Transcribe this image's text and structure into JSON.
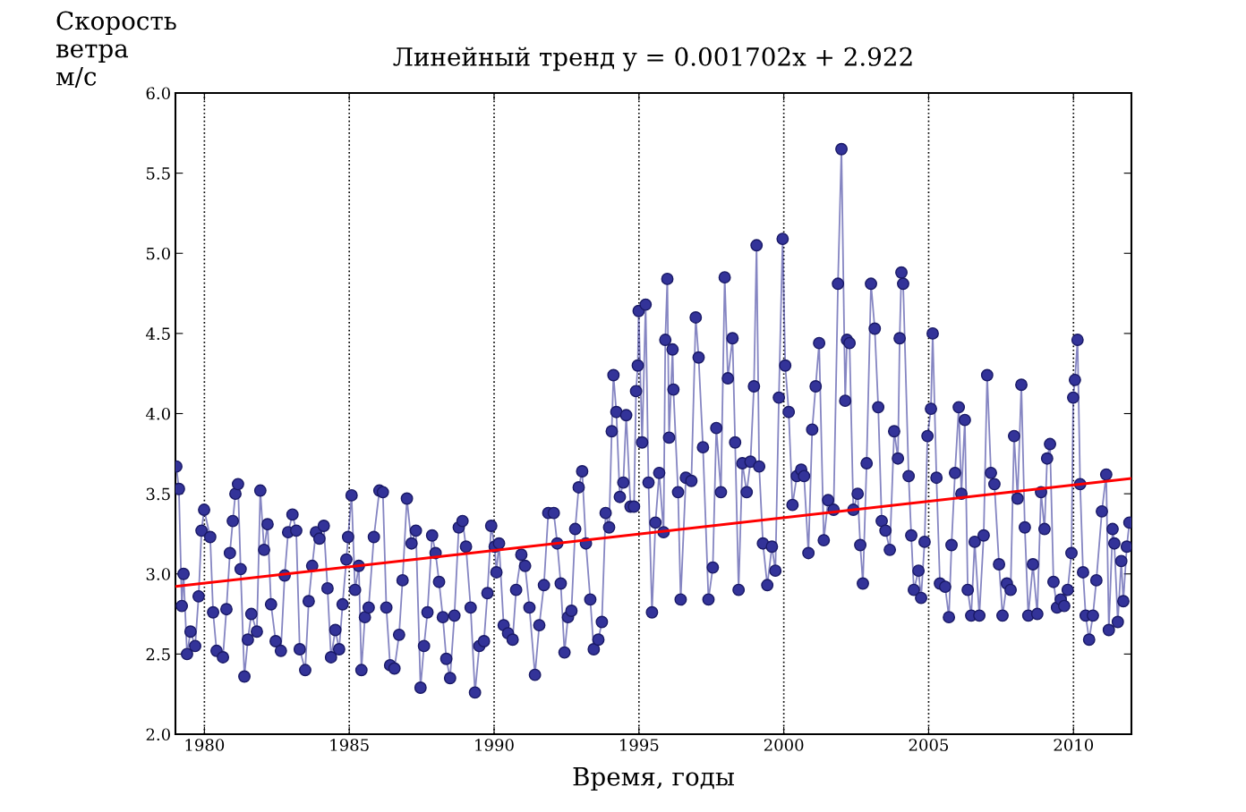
{
  "chart_data": {
    "type": "line",
    "title": "Линейный тренд y = 0.001702x + 2.922",
    "xlabel": "Время, годы",
    "ylabel": "Скорость\nветра\nм/с",
    "xlim": [
      1979,
      2012
    ],
    "xticks": [
      1980,
      1985,
      1990,
      1995,
      2000,
      2005,
      2010
    ],
    "ylim": [
      2.0,
      6.0
    ],
    "yticks": [
      {
        "value": 2.0,
        "label": "2.0"
      },
      {
        "value": 2.5,
        "label": "2.5"
      },
      {
        "value": 3.0,
        "label": "3.0"
      },
      {
        "value": 3.5,
        "label": "3.5"
      },
      {
        "value": 4.0,
        "label": "4.0"
      },
      {
        "value": 4.5,
        "label": "4.5"
      },
      {
        "value": 5.0,
        "label": "5.0"
      },
      {
        "value": 5.5,
        "label": "5.5"
      },
      {
        "value": 6.0,
        "label": "6.0"
      }
    ],
    "grid": "x",
    "legend": false,
    "marker": "circle",
    "line_style": "solid",
    "series": [
      {
        "color": "#333399",
        "x": [
          1979.03,
          1979.12,
          1979.22,
          1979.28,
          1979.4,
          1979.52,
          1979.68,
          1979.8,
          1979.9,
          1979.99,
          1980.2,
          1980.3,
          1980.42,
          1980.64,
          1980.76,
          1980.88,
          1980.98,
          1981.07,
          1981.16,
          1981.25,
          1981.38,
          1981.5,
          1981.62,
          1981.81,
          1981.93,
          1982.06,
          1982.18,
          1982.3,
          1982.46,
          1982.64,
          1982.77,
          1982.89,
          1983.04,
          1983.17,
          1983.29,
          1983.48,
          1983.6,
          1983.72,
          1983.85,
          1983.97,
          1984.12,
          1984.25,
          1984.37,
          1984.52,
          1984.65,
          1984.77,
          1984.9,
          1984.96,
          1985.08,
          1985.2,
          1985.33,
          1985.42,
          1985.54,
          1985.67,
          1985.85,
          1986.04,
          1986.16,
          1986.28,
          1986.41,
          1986.56,
          1986.72,
          1986.84,
          1986.99,
          1987.15,
          1987.3,
          1987.46,
          1987.58,
          1987.7,
          1987.86,
          1987.98,
          1988.1,
          1988.23,
          1988.35,
          1988.48,
          1988.63,
          1988.78,
          1988.91,
          1989.03,
          1989.19,
          1989.34,
          1989.49,
          1989.65,
          1989.77,
          1989.9,
          1990.02,
          1990.08,
          1990.17,
          1990.33,
          1990.48,
          1990.64,
          1990.76,
          1990.94,
          1991.07,
          1991.22,
          1991.41,
          1991.56,
          1991.72,
          1991.87,
          1992.06,
          1992.18,
          1992.3,
          1992.43,
          1992.55,
          1992.67,
          1992.8,
          1992.92,
          1993.04,
          1993.17,
          1993.32,
          1993.44,
          1993.6,
          1993.72,
          1993.85,
          1993.97,
          1994.06,
          1994.12,
          1994.22,
          1994.34,
          1994.46,
          1994.56,
          1994.71,
          1994.83,
          1994.9,
          1994.96,
          1994.99,
          1995.11,
          1995.23,
          1995.33,
          1995.45,
          1995.57,
          1995.7,
          1995.85,
          1995.91,
          1995.98,
          1996.04,
          1996.16,
          1996.19,
          1996.35,
          1996.44,
          1996.62,
          1996.81,
          1996.96,
          1997.06,
          1997.21,
          1997.4,
          1997.55,
          1997.67,
          1997.83,
          1997.96,
          1998.07,
          1998.23,
          1998.32,
          1998.44,
          1998.57,
          1998.72,
          1998.85,
          1998.97,
          1999.06,
          1999.15,
          1999.28,
          1999.43,
          1999.59,
          1999.71,
          1999.83,
          1999.96,
          2000.05,
          2000.17,
          2000.3,
          2000.45,
          2000.6,
          2000.7,
          2000.85,
          2000.98,
          2001.1,
          2001.22,
          2001.38,
          2001.53,
          2001.72,
          2001.87,
          2001.99,
          2002.12,
          2002.18,
          2002.27,
          2002.4,
          2002.55,
          2002.64,
          2002.73,
          2002.86,
          2003.01,
          2003.14,
          2003.26,
          2003.38,
          2003.51,
          2003.66,
          2003.81,
          2003.94,
          2004.0,
          2004.06,
          2004.12,
          2004.31,
          2004.4,
          2004.49,
          2004.65,
          2004.74,
          2004.86,
          2004.96,
          2005.08,
          2005.14,
          2005.27,
          2005.39,
          2005.57,
          2005.7,
          2005.79,
          2005.91,
          2006.04,
          2006.13,
          2006.25,
          2006.35,
          2006.47,
          2006.59,
          2006.75,
          2006.9,
          2007.02,
          2007.15,
          2007.27,
          2007.43,
          2007.55,
          2007.7,
          2007.83,
          2007.95,
          2008.07,
          2008.2,
          2008.32,
          2008.44,
          2008.6,
          2008.75,
          2008.88,
          2009.0,
          2009.09,
          2009.19,
          2009.31,
          2009.43,
          2009.56,
          2009.68,
          2009.8,
          2009.93,
          2009.99,
          2010.05,
          2010.14,
          2010.23,
          2010.33,
          2010.42,
          2010.54,
          2010.67,
          2010.79,
          2010.98,
          2011.13,
          2011.22,
          2011.35,
          2011.41,
          2011.53,
          2011.65,
          2011.72,
          2011.84,
          2011.93
        ],
        "values": [
          3.67,
          3.53,
          2.8,
          3.0,
          2.5,
          2.64,
          2.55,
          2.86,
          3.27,
          3.4,
          3.23,
          2.76,
          2.52,
          2.48,
          2.78,
          3.13,
          3.33,
          3.5,
          3.56,
          3.03,
          2.36,
          2.59,
          2.75,
          2.64,
          3.52,
          3.15,
          3.31,
          2.81,
          2.58,
          2.52,
          2.99,
          3.26,
          3.37,
          3.27,
          2.53,
          2.4,
          2.83,
          3.05,
          3.26,
          3.22,
          3.3,
          2.91,
          2.48,
          2.65,
          2.53,
          2.81,
          3.09,
          3.23,
          3.49,
          2.9,
          3.05,
          2.4,
          2.73,
          2.79,
          3.23,
          3.52,
          3.51,
          2.79,
          2.43,
          2.41,
          2.62,
          2.96,
          3.47,
          3.19,
          3.27,
          2.29,
          2.55,
          2.76,
          3.24,
          3.13,
          2.95,
          2.73,
          2.47,
          2.35,
          2.74,
          3.29,
          3.33,
          3.17,
          2.79,
          2.26,
          2.55,
          2.58,
          2.88,
          3.3,
          3.17,
          3.01,
          3.19,
          2.68,
          2.63,
          2.59,
          2.9,
          3.12,
          3.05,
          2.79,
          2.37,
          2.68,
          2.93,
          3.38,
          3.38,
          3.19,
          2.94,
          2.51,
          2.73,
          2.77,
          3.28,
          3.54,
          3.64,
          3.19,
          2.84,
          2.53,
          2.59,
          2.7,
          3.38,
          3.29,
          3.89,
          4.24,
          4.01,
          3.48,
          3.57,
          3.99,
          3.42,
          3.42,
          4.14,
          4.3,
          4.64,
          3.82,
          4.68,
          3.57,
          2.76,
          3.32,
          3.63,
          3.26,
          4.46,
          4.84,
          3.85,
          4.4,
          4.15,
          3.51,
          2.84,
          3.6,
          3.58,
          4.6,
          4.35,
          3.79,
          2.84,
          3.04,
          3.91,
          3.51,
          4.85,
          4.22,
          4.47,
          3.82,
          2.9,
          3.69,
          3.51,
          3.7,
          4.17,
          5.05,
          3.67,
          3.19,
          2.93,
          3.17,
          3.02,
          4.1,
          5.09,
          4.3,
          4.01,
          3.43,
          3.61,
          3.65,
          3.61,
          3.13,
          3.9,
          4.17,
          4.44,
          3.21,
          3.46,
          3.4,
          4.81,
          5.65,
          4.08,
          4.46,
          4.44,
          3.4,
          3.5,
          3.18,
          2.94,
          3.69,
          4.81,
          4.53,
          4.04,
          3.33,
          3.27,
          3.15,
          3.89,
          3.72,
          4.47,
          4.88,
          4.81,
          3.61,
          3.24,
          2.9,
          3.02,
          2.85,
          3.2,
          3.86,
          4.03,
          4.5,
          3.6,
          2.94,
          2.92,
          2.73,
          3.18,
          3.63,
          4.04,
          3.5,
          3.96,
          2.9,
          2.74,
          3.2,
          2.74,
          3.24,
          4.24,
          3.63,
          3.56,
          3.06,
          2.74,
          2.94,
          2.9,
          3.86,
          3.47,
          4.18,
          3.29,
          2.74,
          3.06,
          2.75,
          3.51,
          3.28,
          3.72,
          3.81,
          2.95,
          2.79,
          2.84,
          2.8,
          2.9,
          3.13,
          4.1,
          4.21,
          4.46,
          3.56,
          3.01,
          2.74,
          2.59,
          2.74,
          2.96,
          3.39,
          3.62,
          2.65,
          3.28,
          3.19,
          2.7,
          3.08,
          2.83,
          3.17,
          3.32
        ]
      },
      {
        "type": "line",
        "color": "#ff0000",
        "marker": "none",
        "x": [
          1979,
          2012
        ],
        "values": [
          2.922,
          3.596
        ]
      }
    ]
  }
}
